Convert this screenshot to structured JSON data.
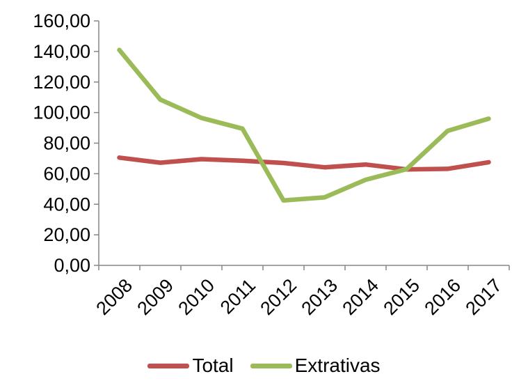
{
  "chart_data": {
    "type": "line",
    "title": "",
    "xlabel": "",
    "ylabel": "",
    "categories": [
      "2008",
      "2009",
      "2010",
      "2011",
      "2012",
      "2013",
      "2014",
      "2015",
      "2016",
      "2017"
    ],
    "ylim": [
      0,
      160
    ],
    "y_ticks": [
      "0,00",
      "20,00",
      "40,00",
      "60,00",
      "80,00",
      "100,00",
      "120,00",
      "140,00",
      "160,00"
    ],
    "grid": false,
    "legend_position": "bottom",
    "series": [
      {
        "name": "Total",
        "color": "#c0504d",
        "values": [
          70.5,
          67.2,
          69.5,
          68.5,
          67.0,
          64.2,
          66.0,
          62.8,
          63.2,
          67.5
        ]
      },
      {
        "name": "Extrativas",
        "color": "#9bbb59",
        "values": [
          141.0,
          108.5,
          96.5,
          89.5,
          42.5,
          44.5,
          56.0,
          63.0,
          88.0,
          96.0
        ]
      }
    ]
  }
}
